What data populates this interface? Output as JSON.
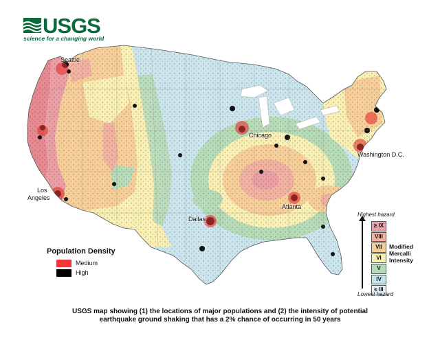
{
  "logo": {
    "wordmark": "USGS",
    "tagline": "science for a changing world"
  },
  "cities": {
    "seattle": "Seattle",
    "los_angeles_1": "Los",
    "los_angeles_2": "Angeles",
    "chicago": "Chicago",
    "washington": "Washington D.C.",
    "atlanta": "Atlanta",
    "dallas": "Dallas"
  },
  "population_legend": {
    "title": "Population Density",
    "items": [
      {
        "label": "Medium",
        "color": "#f03a3a"
      },
      {
        "label": "High",
        "color": "#000000"
      }
    ]
  },
  "hazard_legend": {
    "top": "Highest hazard",
    "bottom": "Lowest hazard",
    "scale_lines": [
      "Modified",
      "Mercalli",
      "Intensity"
    ],
    "levels": [
      {
        "label": "≥ IX",
        "color": "#e8a0a6"
      },
      {
        "label": "VIII",
        "color": "#f1b3a1"
      },
      {
        "label": "VII",
        "color": "#f5cf9a"
      },
      {
        "label": "VI",
        "color": "#f7f0b4"
      },
      {
        "label": "V",
        "color": "#b5dcb8"
      },
      {
        "label": "IV",
        "color": "#c2e4ec"
      },
      {
        "label": "≤ III",
        "color": "#e4f1f8"
      }
    ]
  },
  "caption": {
    "line1": "USGS map showing (1) the locations of major populations and (2) the intensity of potential",
    "line2": "earthquake ground shaking that has a 2% chance of occurring in 50 years"
  }
}
